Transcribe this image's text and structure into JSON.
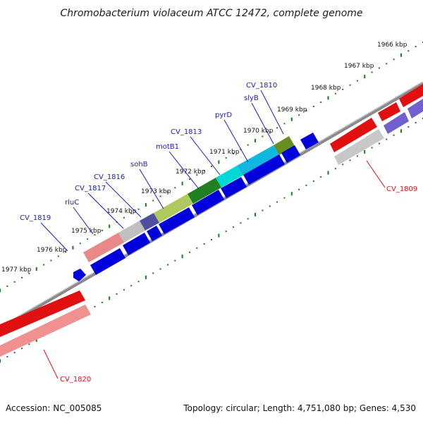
{
  "title": "Chromobacterium violaceum ATCC 12472, complete genome",
  "footer": {
    "accession": "Accession: NC_005085",
    "summary": "Topology: circular; Length: 4,751,080 bp; Genes: 4,530"
  },
  "colors": {
    "backbone": "#7f7f7f",
    "tick_label_line": "#1a7a1a",
    "gene_label": "#1a1acc",
    "outer_label": "#e01010",
    "reverse_strand_gene": "#0000dd"
  },
  "kbp_ticks": [
    {
      "label": "1966 kbp",
      "kbp": 1966
    },
    {
      "label": "1967 kbp",
      "kbp": 1967
    },
    {
      "label": "1968 kbp",
      "kbp": 1968
    },
    {
      "label": "1969 kbp",
      "kbp": 1969
    },
    {
      "label": "1970 kbp",
      "kbp": 1970
    },
    {
      "label": "1971 kbp",
      "kbp": 1971
    },
    {
      "label": "1972 kbp",
      "kbp": 1972
    },
    {
      "label": "1973 kbp",
      "kbp": 1973
    },
    {
      "label": "1974 kbp",
      "kbp": 1974
    },
    {
      "label": "1975 kbp",
      "kbp": 1975
    },
    {
      "label": "1976 kbp",
      "kbp": 1976
    },
    {
      "label": "1977 kbp",
      "kbp": 1977
    }
  ],
  "gene_labels": [
    {
      "name": "CV_1810",
      "color": "#1a1acc"
    },
    {
      "name": "slyB",
      "color": "#1a1acc"
    },
    {
      "name": "pyrD",
      "color": "#1a1acc"
    },
    {
      "name": "CV_1813",
      "color": "#1a1acc"
    },
    {
      "name": "motB1",
      "color": "#1a1acc"
    },
    {
      "name": "sohB",
      "color": "#1a1acc"
    },
    {
      "name": "CV_1816",
      "color": "#1a1acc"
    },
    {
      "name": "CV_1817",
      "color": "#1a1acc"
    },
    {
      "name": "rluC",
      "color": "#1a1acc"
    },
    {
      "name": "CV_1819",
      "color": "#1a1acc"
    },
    {
      "name": "CV_1809",
      "color": "#e01010"
    },
    {
      "name": "CV_1820",
      "color": "#e01010"
    }
  ]
}
